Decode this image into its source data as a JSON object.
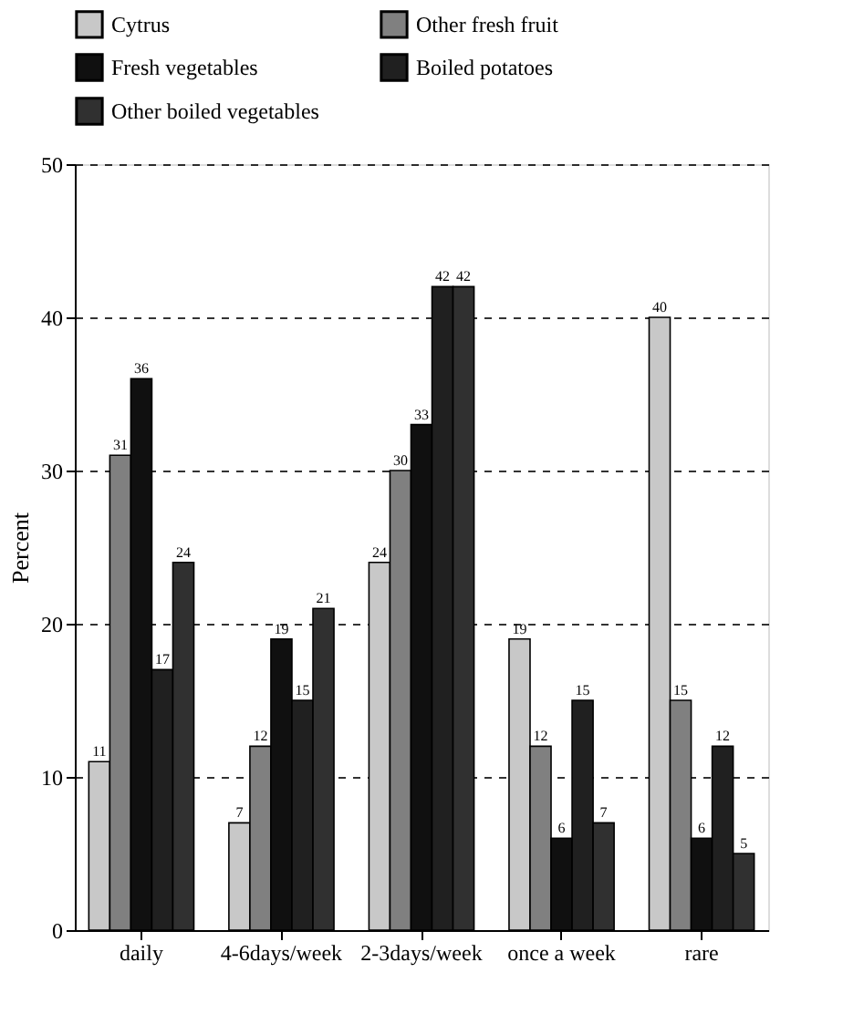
{
  "chart_data": {
    "type": "bar",
    "ylabel": "Percent",
    "categories": [
      "daily",
      "4-6days/week",
      "2-3days/week",
      "once a week",
      "rare"
    ],
    "series": [
      {
        "name": "Cytrus",
        "color": "#c8c8c8",
        "values": [
          11,
          7,
          24,
          19,
          40
        ]
      },
      {
        "name": "Other fresh fruit",
        "color": "#808080",
        "values": [
          31,
          12,
          30,
          12,
          15
        ]
      },
      {
        "name": "Fresh vegetables",
        "color": "#101010",
        "values": [
          36,
          19,
          33,
          6,
          6
        ]
      },
      {
        "name": "Boiled potatoes",
        "color": "#202020",
        "values": [
          17,
          15,
          42,
          15,
          12
        ]
      },
      {
        "name": "Other boiled vegetables",
        "color": "#303030",
        "values": [
          24,
          21,
          42,
          7,
          5
        ]
      }
    ],
    "ylim": [
      0,
      50
    ],
    "yticks": [
      0,
      10,
      20,
      30,
      40,
      50
    ],
    "grid": "y",
    "legend": "top",
    "data_labels": true
  }
}
